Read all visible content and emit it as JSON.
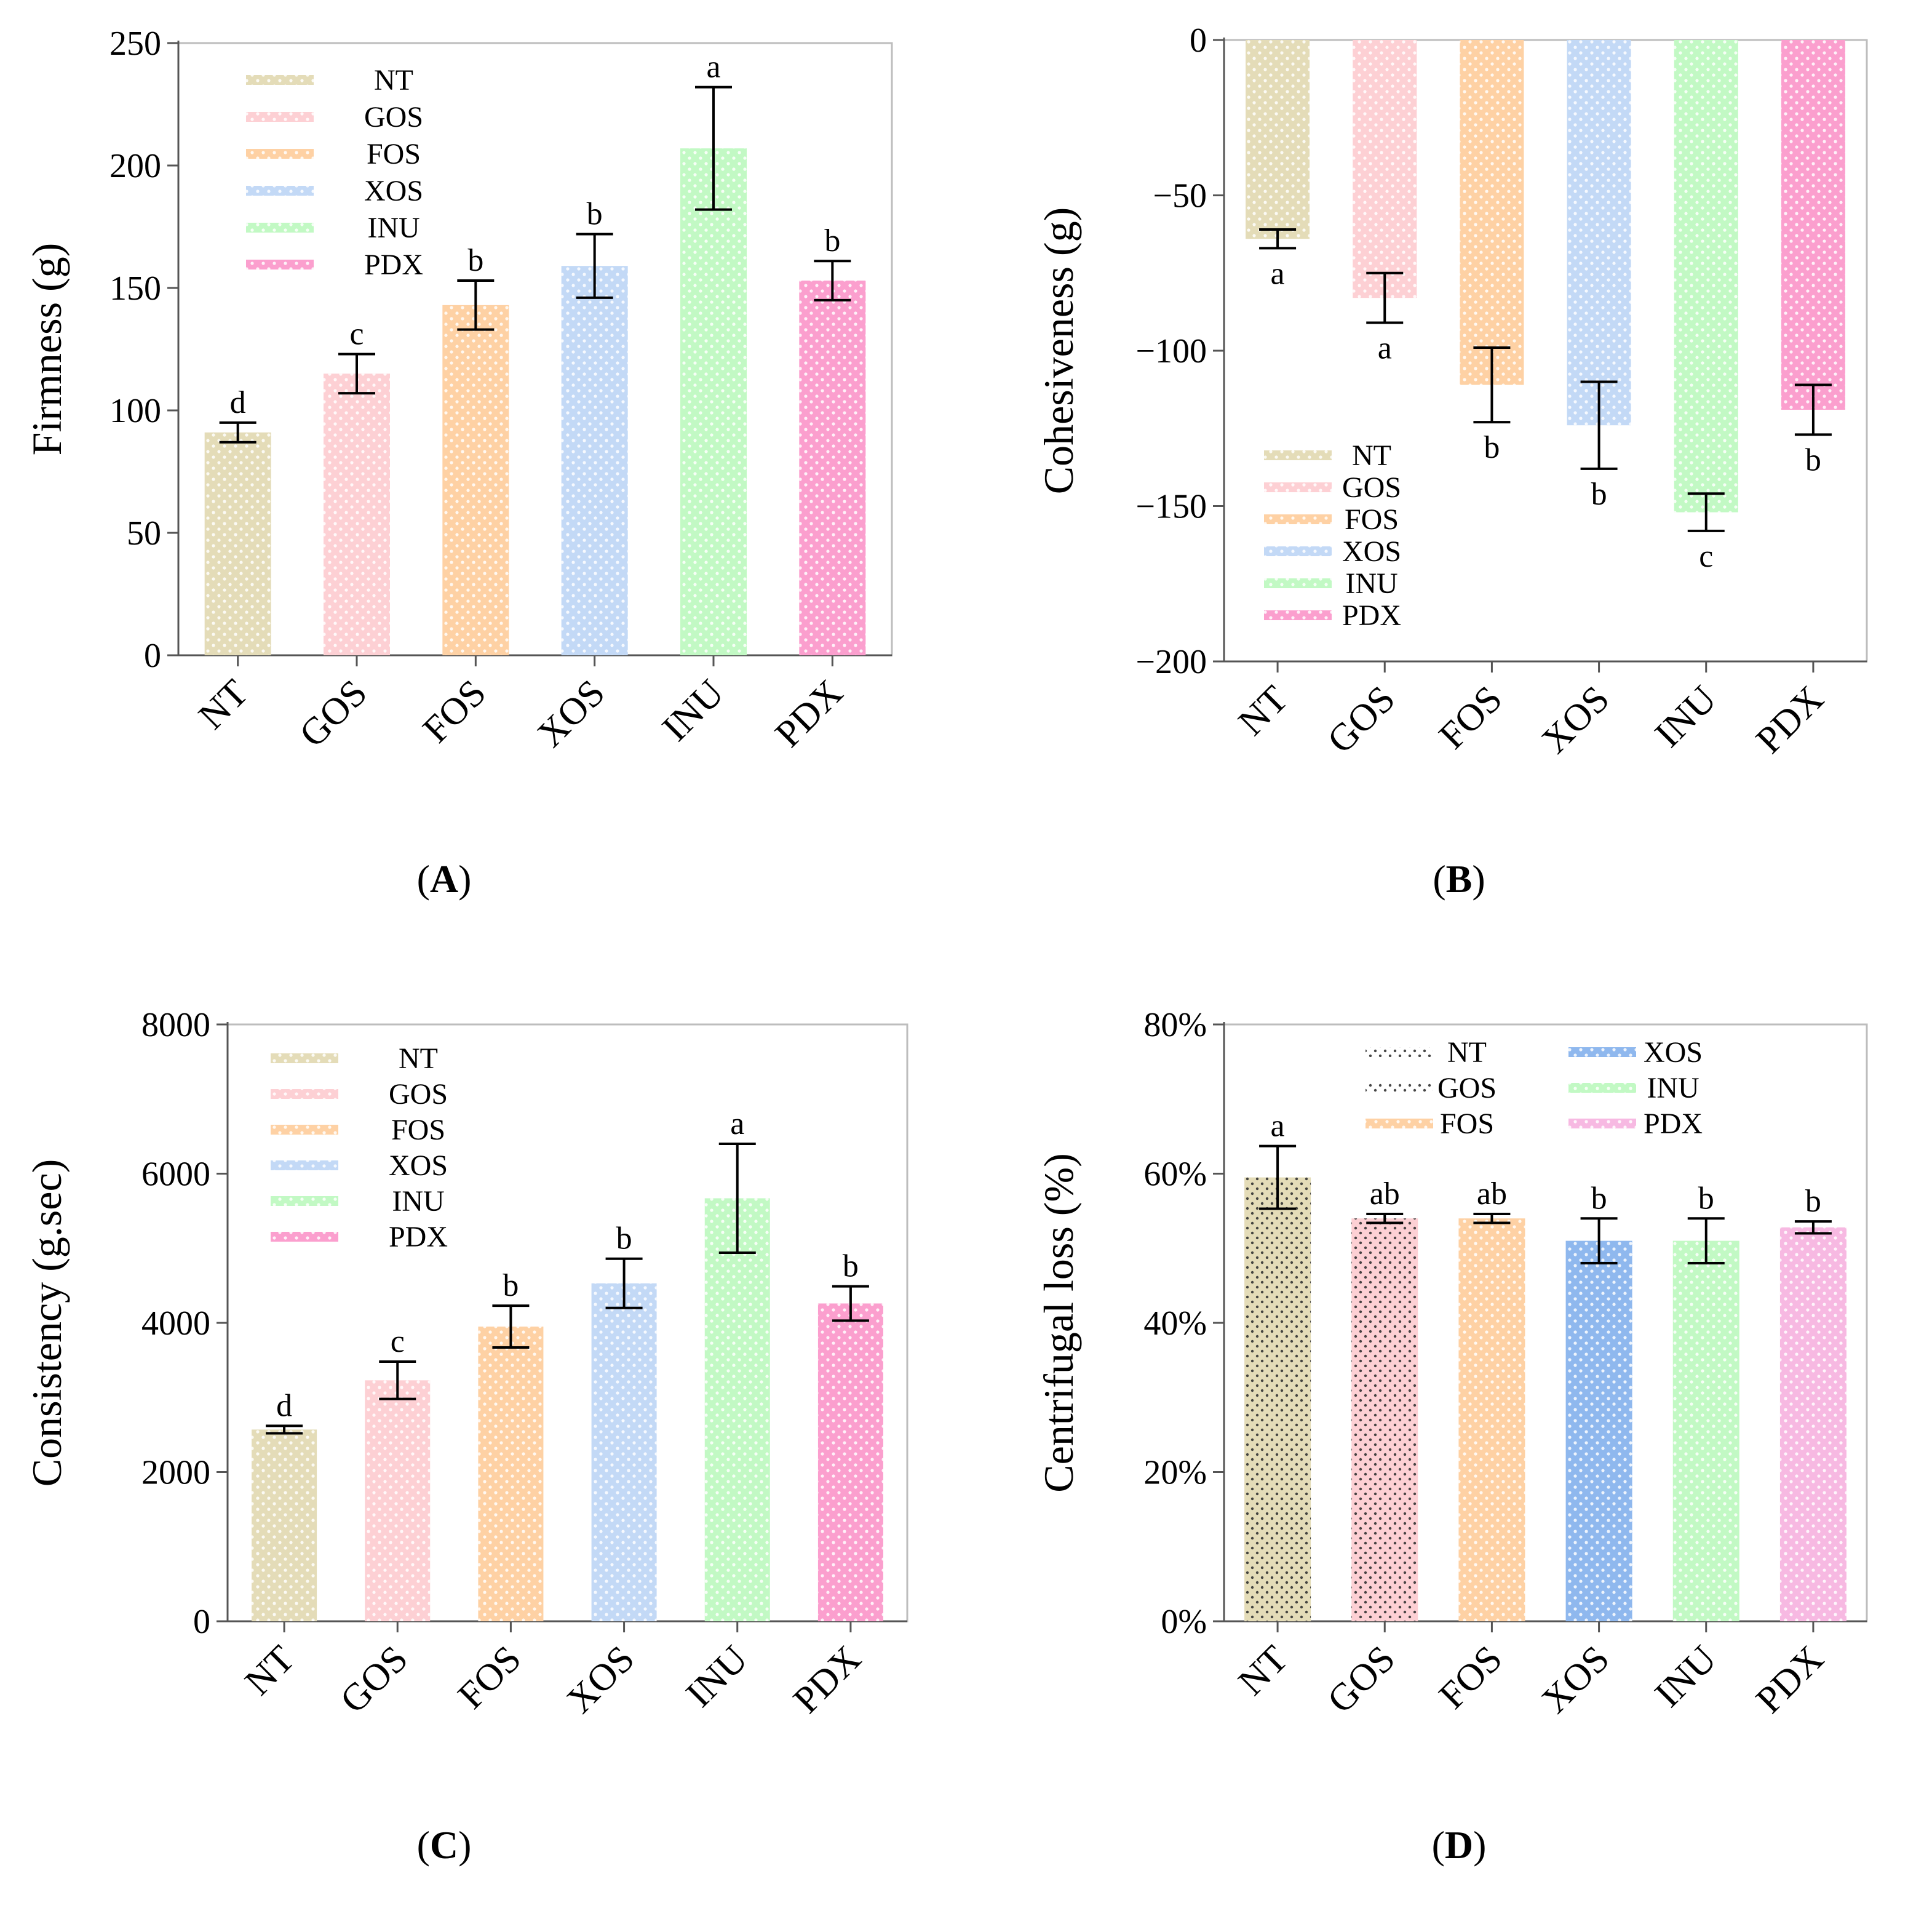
{
  "colors": {
    "NT": "#e4dcb8",
    "GOS": "#fdd0d4",
    "FOS": "#fed1a4",
    "XOS": "#c3d9f6",
    "INU": "#c2f9c4",
    "PDX": "#fb9fce",
    "XOS_D": "#8fb8ee",
    "PDX_D": "#f7b9e2"
  },
  "chart_data": [
    {
      "type": "bar",
      "panel": "A",
      "panel_label": "A",
      "categories": [
        "NT",
        "GOS",
        "FOS",
        "XOS",
        "INU",
        "PDX"
      ],
      "values": [
        91,
        115,
        143,
        159,
        207,
        153
      ],
      "errors": [
        4,
        8,
        10,
        13,
        25,
        8
      ],
      "significance": [
        "d",
        "c",
        "b",
        "b",
        "a",
        "b"
      ],
      "ylabel": "Firmness (g)",
      "ylim": [
        0,
        250
      ],
      "yticks": [
        0,
        50,
        100,
        150,
        200,
        250
      ],
      "ytick_labels": [
        "0",
        "50",
        "100",
        "150",
        "200",
        "250"
      ],
      "legend": [
        "NT",
        "GOS",
        "FOS",
        "XOS",
        "INU",
        "PDX"
      ],
      "legend_placement": "top-left"
    },
    {
      "type": "bar",
      "panel": "B",
      "panel_label": "B",
      "categories": [
        "NT",
        "GOS",
        "FOS",
        "XOS",
        "INU",
        "PDX"
      ],
      "values": [
        -64,
        -83,
        -111,
        -124,
        -152,
        -119
      ],
      "errors": [
        3,
        8,
        12,
        14,
        6,
        8
      ],
      "significance": [
        "a",
        "a",
        "b",
        "b",
        "c",
        "b"
      ],
      "ylabel": "Cohesiveness   (g)",
      "ylim": [
        -200,
        0
      ],
      "yticks": [
        -200,
        -150,
        -100,
        -50,
        0
      ],
      "ytick_labels": [
        "−200",
        "−150",
        "−100",
        "−50",
        "0"
      ],
      "legend": [
        "NT",
        "GOS",
        "FOS",
        "XOS",
        "INU",
        "PDX"
      ],
      "legend_placement": "bottom-left"
    },
    {
      "type": "bar",
      "panel": "C",
      "panel_label": "C",
      "categories": [
        "NT",
        "GOS",
        "FOS",
        "XOS",
        "INU",
        "PDX"
      ],
      "values": [
        2570,
        3230,
        3950,
        4530,
        5670,
        4260
      ],
      "errors": [
        50,
        250,
        280,
        330,
        730,
        230
      ],
      "significance": [
        "d",
        "c",
        "b",
        "b",
        "a",
        "b"
      ],
      "ylabel": "Consistency (g.sec)",
      "ylim": [
        0,
        8000
      ],
      "yticks": [
        0,
        2000,
        4000,
        6000,
        8000
      ],
      "ytick_labels": [
        "0",
        "2000",
        "4000",
        "6000",
        "8000"
      ],
      "legend": [
        "NT",
        "GOS",
        "FOS",
        "XOS",
        "INU",
        "PDX"
      ],
      "legend_placement": "top-left"
    },
    {
      "type": "bar",
      "panel": "D",
      "panel_label": "D",
      "categories": [
        "NT",
        "GOS",
        "FOS",
        "XOS",
        "INU",
        "PDX"
      ],
      "values": [
        59.5,
        54,
        54,
        51,
        51,
        52.8
      ],
      "errors": [
        4.2,
        0.6,
        0.6,
        3,
        3,
        0.8
      ],
      "significance": [
        "a",
        "ab",
        "ab",
        "b",
        "b",
        "b"
      ],
      "ylabel": "Centrifugal loss (%)",
      "ylim": [
        0,
        80
      ],
      "yticks": [
        0,
        20,
        40,
        60,
        80
      ],
      "ytick_labels": [
        "0%",
        "20%",
        "40%",
        "60%",
        "80%"
      ],
      "legend": [
        "NT",
        "GOS",
        "FOS",
        "XOS",
        "INU",
        "PDX"
      ],
      "legend_placement": "top (two columns)"
    }
  ]
}
